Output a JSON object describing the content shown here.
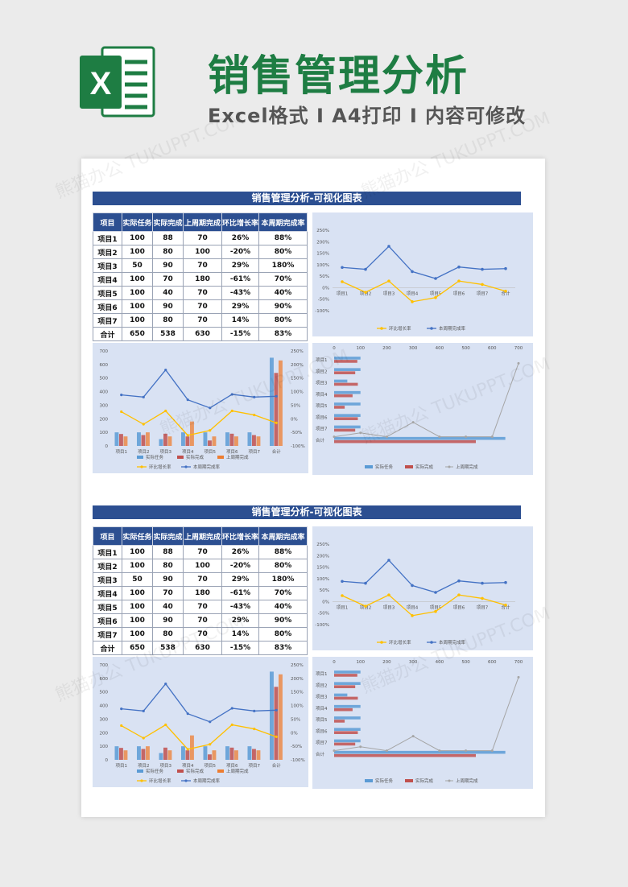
{
  "header": {
    "title": "销售管理分析",
    "subtitle": "Excel格式 I A4打印 I 内容可修改",
    "logo_letter": "X"
  },
  "watermark": "熊猫办公 TUKUPPT.COM",
  "colors": {
    "blue": "#4472c4",
    "orange": "#ed7d31",
    "yellow": "#ffc000",
    "gray": "#a5a5a5",
    "bar_blue": "#5b9bd5",
    "bar_red": "#c0504d",
    "navy": "#2c4f91"
  },
  "section": {
    "banner": "销售管理分析-可视化图表",
    "table": {
      "headers": [
        "项目",
        "实际任务",
        "实际完成",
        "上周期完成",
        "环比增长率",
        "本周期完成率"
      ],
      "rows": [
        [
          "项目1",
          "100",
          "88",
          "70",
          "26%",
          "88%"
        ],
        [
          "项目2",
          "100",
          "80",
          "100",
          "-20%",
          "80%"
        ],
        [
          "项目3",
          "50",
          "90",
          "70",
          "29%",
          "180%"
        ],
        [
          "项目4",
          "100",
          "70",
          "180",
          "-61%",
          "70%"
        ],
        [
          "项目5",
          "100",
          "40",
          "70",
          "-43%",
          "40%"
        ],
        [
          "项目6",
          "100",
          "90",
          "70",
          "29%",
          "90%"
        ],
        [
          "项目7",
          "100",
          "80",
          "70",
          "14%",
          "80%"
        ],
        [
          "合计",
          "650",
          "538",
          "630",
          "-15%",
          "83%"
        ]
      ]
    }
  },
  "chart_data": [
    {
      "type": "line",
      "title": "",
      "categories": [
        "项目1",
        "项目2",
        "项目3",
        "项目4",
        "项目5",
        "项目6",
        "项目7",
        "合计"
      ],
      "series": [
        {
          "name": "环比增长率",
          "values": [
            26,
            -20,
            29,
            -61,
            -43,
            29,
            14,
            -15
          ]
        },
        {
          "name": "本周期完成率",
          "values": [
            88,
            80,
            180,
            70,
            40,
            90,
            80,
            83
          ]
        }
      ],
      "ylim": [
        -100,
        250
      ],
      "yticks": [
        "250%",
        "200%",
        "150%",
        "100%",
        "50%",
        "0%",
        "-50%",
        "-100%"
      ],
      "legend": [
        "环比增长率",
        "本周期完成率"
      ]
    },
    {
      "type": "bar",
      "categories": [
        "项目1",
        "项目2",
        "项目3",
        "项目4",
        "项目5",
        "项目6",
        "项目7",
        "合计"
      ],
      "series": [
        {
          "name": "实际任务",
          "values": [
            100,
            100,
            50,
            100,
            100,
            100,
            100,
            650
          ]
        },
        {
          "name": "实际完成",
          "values": [
            88,
            80,
            90,
            70,
            40,
            90,
            80,
            538
          ]
        },
        {
          "name": "上周期完成",
          "values": [
            70,
            100,
            70,
            180,
            70,
            70,
            70,
            630
          ]
        },
        {
          "name": "环比增长率",
          "values": [
            26,
            -20,
            29,
            -61,
            -43,
            29,
            14,
            -15
          ]
        },
        {
          "name": "本周期完成率",
          "values": [
            88,
            80,
            180,
            70,
            40,
            90,
            80,
            83
          ]
        }
      ],
      "ylim_left": [
        0,
        700
      ],
      "yticks_left": [
        "700",
        "600",
        "500",
        "400",
        "300",
        "200",
        "100",
        "0"
      ],
      "ylim_right": [
        -100,
        250
      ],
      "yticks_right": [
        "250%",
        "200%",
        "150%",
        "100%",
        "50%",
        "0%",
        "-50%",
        "-100%"
      ],
      "legend_top": [
        "实际任务",
        "实际完成",
        "上周期完成"
      ],
      "legend_bottom": [
        "环比增长率",
        "本周期完成率"
      ]
    },
    {
      "type": "bar",
      "orientation": "horizontal",
      "categories": [
        "项目1",
        "项目2",
        "项目3",
        "项目4",
        "项目5",
        "项目6",
        "项目7",
        "合计"
      ],
      "series": [
        {
          "name": "实际任务",
          "values": [
            100,
            100,
            50,
            100,
            100,
            100,
            100,
            650
          ]
        },
        {
          "name": "实际完成",
          "values": [
            88,
            80,
            90,
            70,
            40,
            90,
            80,
            538
          ]
        },
        {
          "name": "上周期完成",
          "values": [
            70,
            100,
            70,
            180,
            70,
            70,
            70,
            630
          ]
        }
      ],
      "xlim": [
        0,
        700
      ],
      "xticks": [
        "0",
        "100",
        "200",
        "300",
        "400",
        "500",
        "600",
        "700"
      ],
      "legend": [
        "实际任务",
        "实际完成",
        "上周期完成"
      ]
    }
  ]
}
